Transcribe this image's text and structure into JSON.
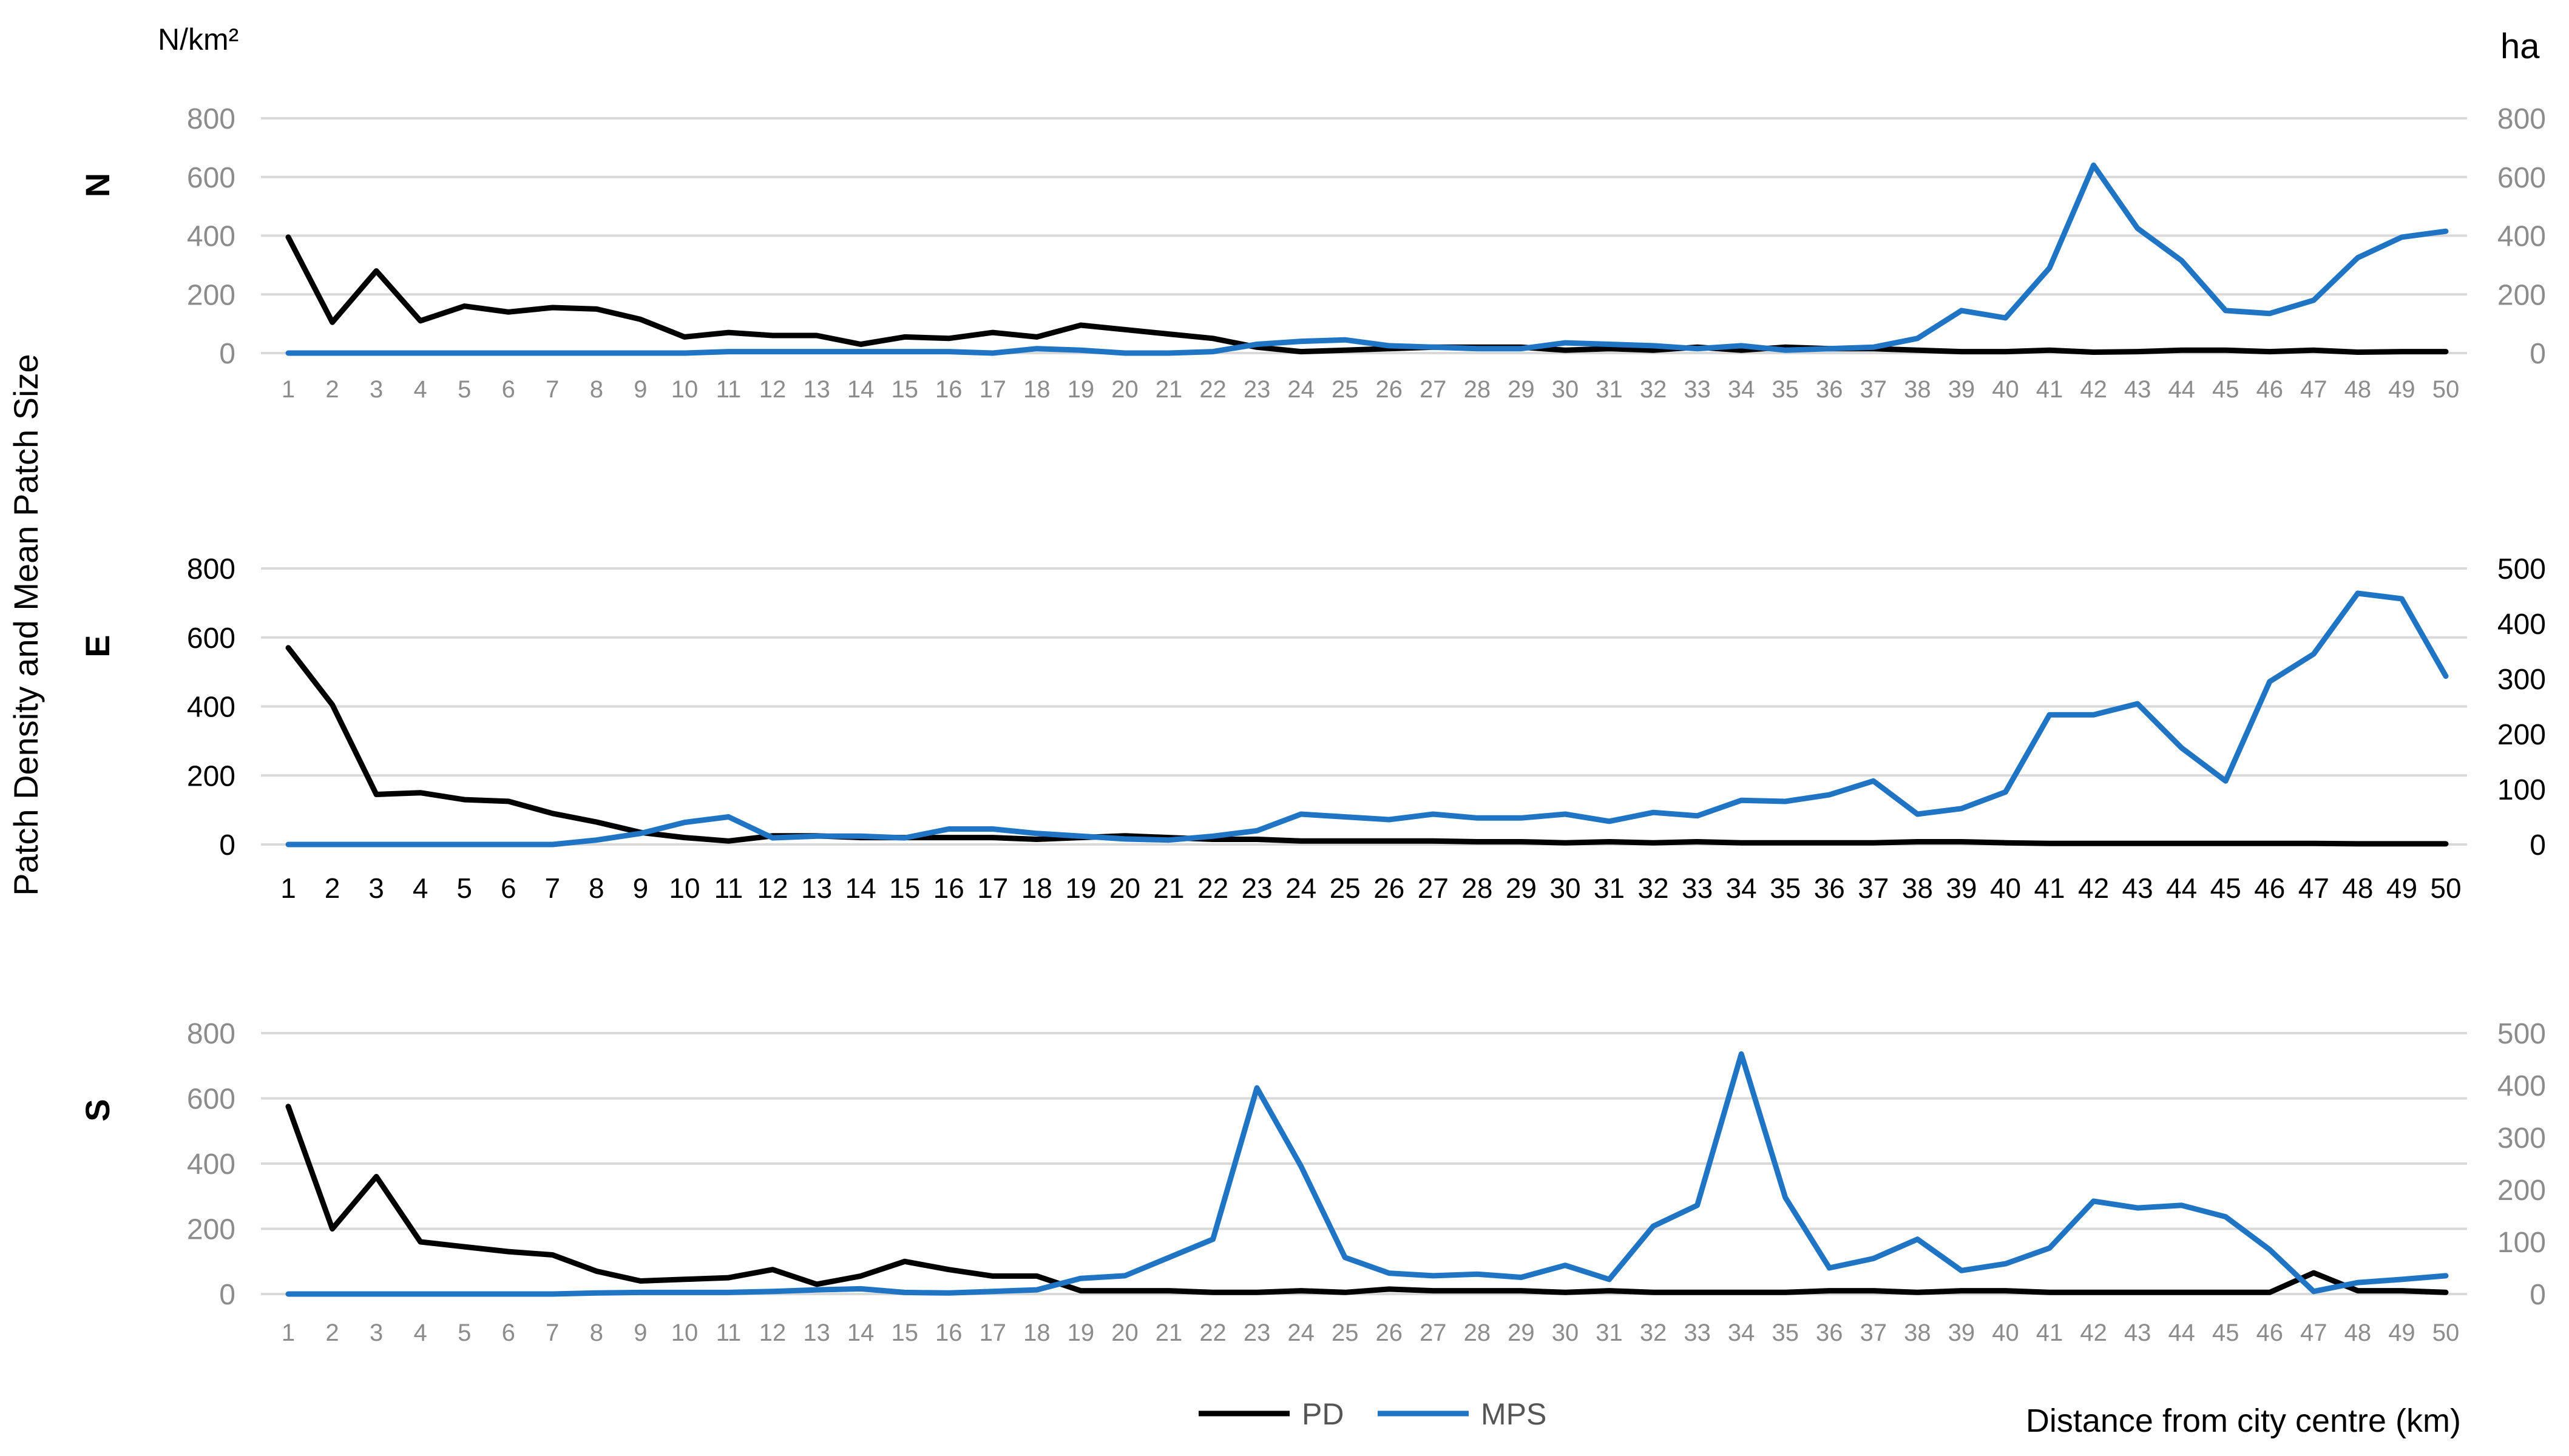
{
  "figure": {
    "left_unit": "N/km²",
    "right_unit": "ha",
    "ylabel": "Patch Density and Mean Patch Size",
    "xlabel": "Distance from city centre (km)",
    "legend": [
      {
        "name": "PD",
        "color": "#000000"
      },
      {
        "name": "MPS",
        "color": "#1f74c4"
      }
    ]
  },
  "chart_data": [
    {
      "type": "line",
      "panel_label": "N",
      "x": [
        1,
        2,
        3,
        4,
        5,
        6,
        7,
        8,
        9,
        10,
        11,
        12,
        13,
        14,
        15,
        16,
        17,
        18,
        19,
        20,
        21,
        22,
        23,
        24,
        25,
        26,
        27,
        28,
        29,
        30,
        31,
        32,
        33,
        34,
        35,
        36,
        37,
        38,
        39,
        40,
        41,
        42,
        43,
        44,
        45,
        46,
        47,
        48,
        49,
        50
      ],
      "left_ylim": [
        0,
        800
      ],
      "left_ticks": [
        0,
        200,
        400,
        600,
        800
      ],
      "right_ylim": [
        0,
        800
      ],
      "right_ticks": [
        0,
        200,
        400,
        600,
        800
      ],
      "grid": true,
      "tick_color": "#8c8c8c",
      "series": [
        {
          "name": "PD",
          "axis": "left",
          "color": "#000000",
          "values": [
            395,
            105,
            280,
            110,
            160,
            140,
            155,
            150,
            115,
            55,
            70,
            60,
            60,
            30,
            55,
            50,
            70,
            55,
            95,
            80,
            65,
            50,
            20,
            5,
            10,
            15,
            20,
            20,
            20,
            10,
            15,
            10,
            20,
            10,
            20,
            15,
            15,
            10,
            5,
            5,
            10,
            3,
            5,
            10,
            10,
            5,
            10,
            3,
            5,
            5
          ]
        },
        {
          "name": "MPS",
          "axis": "right",
          "color": "#1f74c4",
          "values": [
            0,
            0,
            0,
            0,
            0,
            0,
            0,
            0,
            0,
            0,
            5,
            5,
            5,
            5,
            5,
            5,
            0,
            15,
            10,
            0,
            0,
            5,
            30,
            40,
            45,
            25,
            20,
            15,
            15,
            35,
            30,
            25,
            15,
            25,
            10,
            15,
            20,
            50,
            145,
            120,
            290,
            640,
            425,
            315,
            145,
            135,
            180,
            325,
            395,
            415
          ]
        }
      ]
    },
    {
      "type": "line",
      "panel_label": "E",
      "x": [
        1,
        2,
        3,
        4,
        5,
        6,
        7,
        8,
        9,
        10,
        11,
        12,
        13,
        14,
        15,
        16,
        17,
        18,
        19,
        20,
        21,
        22,
        23,
        24,
        25,
        26,
        27,
        28,
        29,
        30,
        31,
        32,
        33,
        34,
        35,
        36,
        37,
        38,
        39,
        40,
        41,
        42,
        43,
        44,
        45,
        46,
        47,
        48,
        49,
        50
      ],
      "left_ylim": [
        0,
        800
      ],
      "left_ticks": [
        0,
        200,
        400,
        600,
        800
      ],
      "right_ylim": [
        0,
        500
      ],
      "right_ticks": [
        0,
        100,
        200,
        300,
        400,
        500
      ],
      "grid": true,
      "tick_color": "#000000",
      "series": [
        {
          "name": "PD",
          "axis": "left",
          "color": "#000000",
          "values": [
            570,
            405,
            145,
            150,
            130,
            125,
            90,
            65,
            35,
            20,
            10,
            25,
            25,
            20,
            20,
            20,
            20,
            15,
            20,
            25,
            20,
            15,
            15,
            10,
            10,
            10,
            10,
            8,
            8,
            5,
            8,
            5,
            8,
            5,
            5,
            5,
            5,
            8,
            8,
            5,
            3,
            3,
            3,
            3,
            3,
            3,
            3,
            2,
            2,
            2
          ]
        },
        {
          "name": "MPS",
          "axis": "right",
          "color": "#1f74c4",
          "values": [
            0,
            0,
            0,
            0,
            0,
            0,
            0,
            8,
            20,
            40,
            50,
            12,
            15,
            15,
            12,
            28,
            28,
            20,
            15,
            10,
            8,
            15,
            25,
            55,
            50,
            45,
            55,
            48,
            48,
            55,
            42,
            58,
            52,
            80,
            78,
            90,
            115,
            55,
            65,
            95,
            235,
            235,
            255,
            175,
            115,
            295,
            345,
            455,
            445,
            305
          ]
        }
      ]
    },
    {
      "type": "line",
      "panel_label": "S",
      "x": [
        1,
        2,
        3,
        4,
        5,
        6,
        7,
        8,
        9,
        10,
        11,
        12,
        13,
        14,
        15,
        16,
        17,
        18,
        19,
        20,
        21,
        22,
        23,
        24,
        25,
        26,
        27,
        28,
        29,
        30,
        31,
        32,
        33,
        34,
        35,
        36,
        37,
        38,
        39,
        40,
        41,
        42,
        43,
        44,
        45,
        46,
        47,
        48,
        49,
        50
      ],
      "left_ylim": [
        0,
        800
      ],
      "left_ticks": [
        0,
        200,
        400,
        600,
        800
      ],
      "right_ylim": [
        0,
        500
      ],
      "right_ticks": [
        0,
        100,
        200,
        300,
        400,
        500
      ],
      "grid": true,
      "tick_color": "#8c8c8c",
      "series": [
        {
          "name": "PD",
          "axis": "left",
          "color": "#000000",
          "values": [
            575,
            200,
            360,
            160,
            145,
            130,
            120,
            70,
            40,
            45,
            50,
            75,
            30,
            55,
            100,
            75,
            55,
            55,
            10,
            10,
            10,
            5,
            5,
            10,
            5,
            15,
            10,
            10,
            10,
            5,
            10,
            5,
            5,
            5,
            5,
            10,
            10,
            5,
            10,
            10,
            5,
            5,
            5,
            5,
            5,
            5,
            65,
            10,
            10,
            5
          ]
        },
        {
          "name": "MPS",
          "axis": "right",
          "color": "#1f74c4",
          "values": [
            0,
            0,
            0,
            0,
            0,
            0,
            0,
            2,
            3,
            3,
            3,
            5,
            8,
            10,
            3,
            2,
            5,
            8,
            30,
            35,
            70,
            105,
            395,
            245,
            70,
            40,
            35,
            38,
            32,
            55,
            28,
            130,
            170,
            460,
            185,
            50,
            68,
            105,
            45,
            58,
            88,
            178,
            165,
            170,
            148,
            85,
            5,
            22,
            28,
            35
          ]
        }
      ]
    }
  ]
}
